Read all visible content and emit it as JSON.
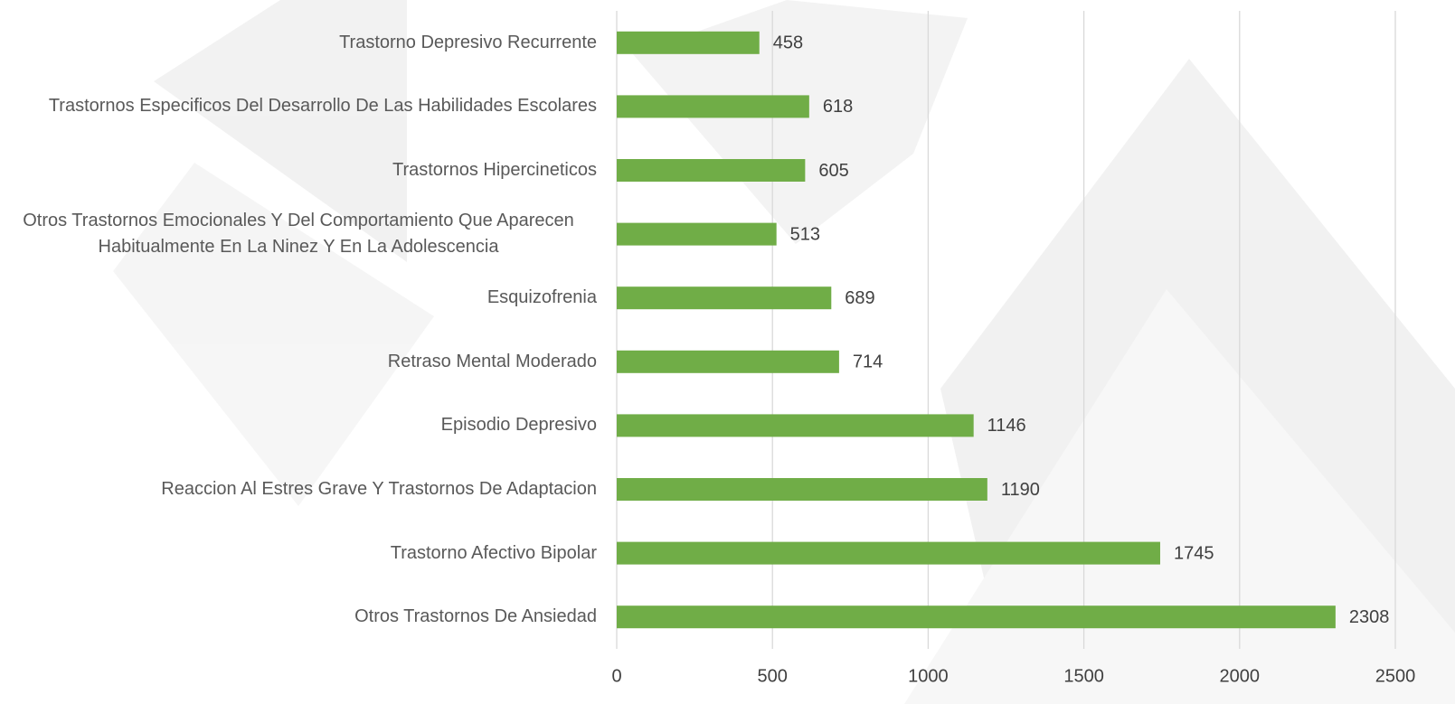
{
  "chart_data": {
    "type": "bar",
    "orientation": "horizontal",
    "categories": [
      "Trastorno Depresivo Recurrente",
      "Trastornos Especificos Del Desarrollo De Las Habilidades Escolares",
      "Trastornos Hipercineticos",
      "Otros Trastornos Emocionales Y Del Comportamiento Que Aparecen Habitualmente En La Ninez Y En La Adolescencia",
      "Esquizofrenia",
      "Retraso Mental Moderado",
      "Episodio Depresivo",
      "Reaccion Al Estres Grave Y Trastornos De Adaptacion",
      "Trastorno Afectivo Bipolar",
      "Otros Trastornos De Ansiedad"
    ],
    "values": [
      458,
      618,
      605,
      513,
      689,
      714,
      1146,
      1190,
      1745,
      2308
    ],
    "color": "#70ad47",
    "xlim": [
      0,
      2500
    ],
    "xticks": [
      0,
      500,
      1000,
      1500,
      2000,
      2500
    ],
    "grid": true
  }
}
